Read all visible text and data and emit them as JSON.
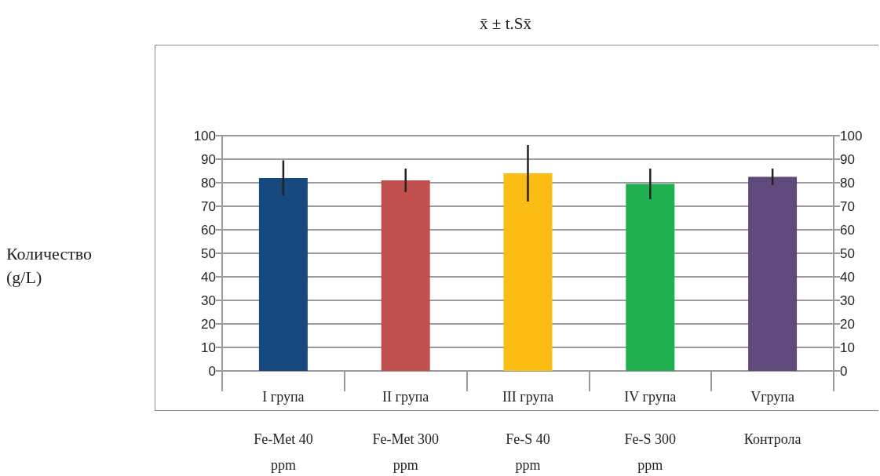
{
  "chart_data": {
    "type": "bar",
    "title": "x̄ ± t.Sx̄",
    "annotations": [
      "Количество\n(g/L)"
    ],
    "categories": [
      "I група\nFe-Met 40\nppm",
      "II група\nFe-Met 300\nppm",
      "III група\nFe-S 40\nppm",
      "IV група\nFe-S 300\nppm",
      "Vгрупа\nКонтрола"
    ],
    "values": [
      82,
      81,
      84,
      79.5,
      82.5
    ],
    "colors": [
      "#17497e",
      "#c0504d",
      "#fbbd13",
      "#21b04f",
      "#604a7b"
    ],
    "errors": [
      7.5,
      5,
      12,
      6.5,
      3.5
    ],
    "ylim": [
      0,
      100
    ],
    "yticks": [
      0,
      10,
      20,
      30,
      40,
      50,
      60,
      70,
      80,
      90,
      100
    ],
    "y2lim": [
      0,
      100
    ],
    "y2ticks": [
      0,
      10,
      20,
      30,
      40,
      50,
      60,
      70,
      80,
      90,
      100
    ],
    "grid": "y"
  }
}
